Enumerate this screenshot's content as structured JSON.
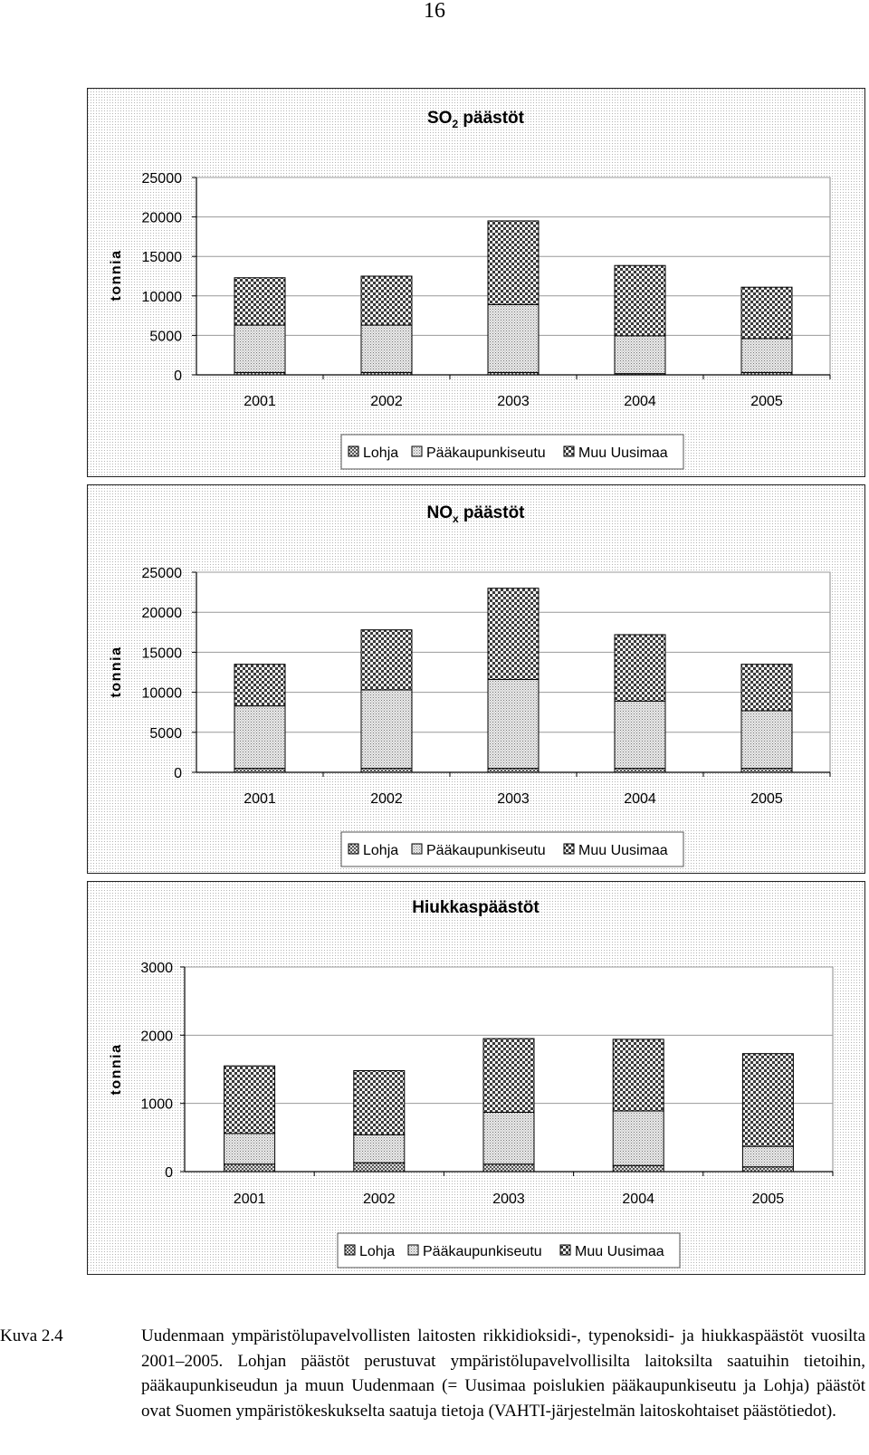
{
  "page_number": "16",
  "legend_labels": [
    "Lohja",
    "Pääkaupunkiseutu",
    "Muu Uusimaa"
  ],
  "chart_data": [
    {
      "type": "bar",
      "stacked": true,
      "title": "SO",
      "title_sub": "2",
      "title_rest": " päästöt",
      "ylabel": "tonnia",
      "categories": [
        "2001",
        "2002",
        "2003",
        "2004",
        "2005"
      ],
      "ylim": [
        0,
        25000
      ],
      "yticks": [
        "0",
        "5000",
        "10000",
        "15000",
        "20000",
        "25000"
      ],
      "grid": true,
      "legend": "bottom",
      "series": [
        {
          "name": "Lohja",
          "values": [
            300,
            300,
            300,
            150,
            300
          ]
        },
        {
          "name": "Pääkaupunkiseutu",
          "values": [
            6000,
            6000,
            8600,
            4800,
            4300
          ]
        },
        {
          "name": "Muu Uusimaa",
          "values": [
            6000,
            6200,
            10600,
            8900,
            6500
          ]
        }
      ]
    },
    {
      "type": "bar",
      "stacked": true,
      "title": "NO",
      "title_sub": "x",
      "title_rest": " päästöt",
      "ylabel": "tonnia",
      "categories": [
        "2001",
        "2002",
        "2003",
        "2004",
        "2005"
      ],
      "ylim": [
        0,
        25000
      ],
      "yticks": [
        "0",
        "5000",
        "10000",
        "15000",
        "20000",
        "25000"
      ],
      "grid": true,
      "legend": "bottom",
      "series": [
        {
          "name": "Lohja",
          "values": [
            500,
            500,
            500,
            500,
            500
          ]
        },
        {
          "name": "Pääkaupunkiseutu",
          "values": [
            7800,
            9800,
            11100,
            8400,
            7200
          ]
        },
        {
          "name": "Muu Uusimaa",
          "values": [
            5200,
            7500,
            11400,
            8300,
            5800
          ]
        }
      ]
    },
    {
      "type": "bar",
      "stacked": true,
      "title": "Hiukkaspäästöt",
      "title_sub": "",
      "title_rest": "",
      "ylabel": "tonnia",
      "categories": [
        "2001",
        "2002",
        "2003",
        "2004",
        "2005"
      ],
      "ylim": [
        0,
        3000
      ],
      "yticks": [
        "0",
        "1000",
        "2000",
        "3000"
      ],
      "grid": true,
      "legend": "bottom",
      "series": [
        {
          "name": "Lohja",
          "values": [
            110,
            130,
            110,
            90,
            70
          ]
        },
        {
          "name": "Pääkaupunkiseutu",
          "values": [
            450,
            410,
            760,
            800,
            300
          ]
        },
        {
          "name": "Muu Uusimaa",
          "values": [
            990,
            940,
            1080,
            1050,
            1360
          ]
        }
      ]
    }
  ],
  "caption": {
    "label": "Kuva 2.4",
    "text": "Uudenmaan ympäristölupavelvollisten laitosten rikkidioksidi-, typenoksidi- ja hiukkaspäästöt vuosilta 2001–2005. Lohjan päästöt perustuvat ympäristölupavelvollisilta laitoksilta saatuihin tietoihin, pääkaupunkiseudun ja muun Uudenmaan (= Uusimaa poislukien pääkaupunkiseutu ja Lohja) päästöt ovat Suomen ympäristökeskukselta saatuja tietoja (VAHTI-järjestelmän laitoskohtaiset päästötiedot)."
  }
}
